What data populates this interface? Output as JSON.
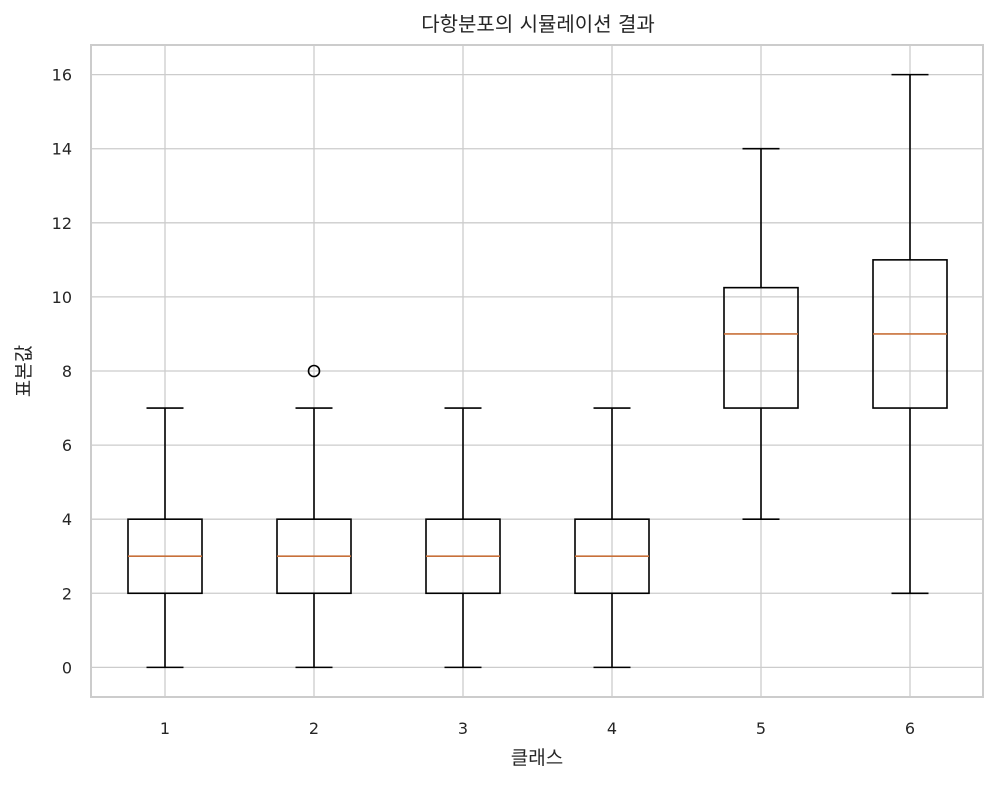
{
  "chart_data": {
    "type": "boxplot",
    "title": "다항분포의 시뮬레이션 결과",
    "xlabel": "클래스",
    "ylabel": "표본값",
    "categories": [
      "1",
      "2",
      "3",
      "4",
      "5",
      "6"
    ],
    "yticks": [
      0,
      2,
      4,
      6,
      8,
      10,
      12,
      14,
      16
    ],
    "ylim": [
      -0.8,
      16.8
    ],
    "grid": true,
    "boxes": [
      {
        "category": "1",
        "whislo": 0,
        "q1": 2,
        "median": 3,
        "q3": 4,
        "whishi": 7,
        "fliers": []
      },
      {
        "category": "2",
        "whislo": 0,
        "q1": 2,
        "median": 3,
        "q3": 4,
        "whishi": 7,
        "fliers": [
          8
        ]
      },
      {
        "category": "3",
        "whislo": 0,
        "q1": 2,
        "median": 3,
        "q3": 4,
        "whishi": 7,
        "fliers": []
      },
      {
        "category": "4",
        "whislo": 0,
        "q1": 2,
        "median": 3,
        "q3": 4,
        "whishi": 7,
        "fliers": []
      },
      {
        "category": "5",
        "whislo": 4,
        "q1": 7,
        "median": 9,
        "q3": 10.25,
        "whishi": 14,
        "fliers": []
      },
      {
        "category": "6",
        "whislo": 2,
        "q1": 7,
        "median": 9,
        "q3": 11,
        "whishi": 16,
        "fliers": []
      }
    ],
    "colors": {
      "box": "#000000",
      "median": "#c8703a",
      "grid": "#cccccc",
      "text": "#262626"
    }
  }
}
